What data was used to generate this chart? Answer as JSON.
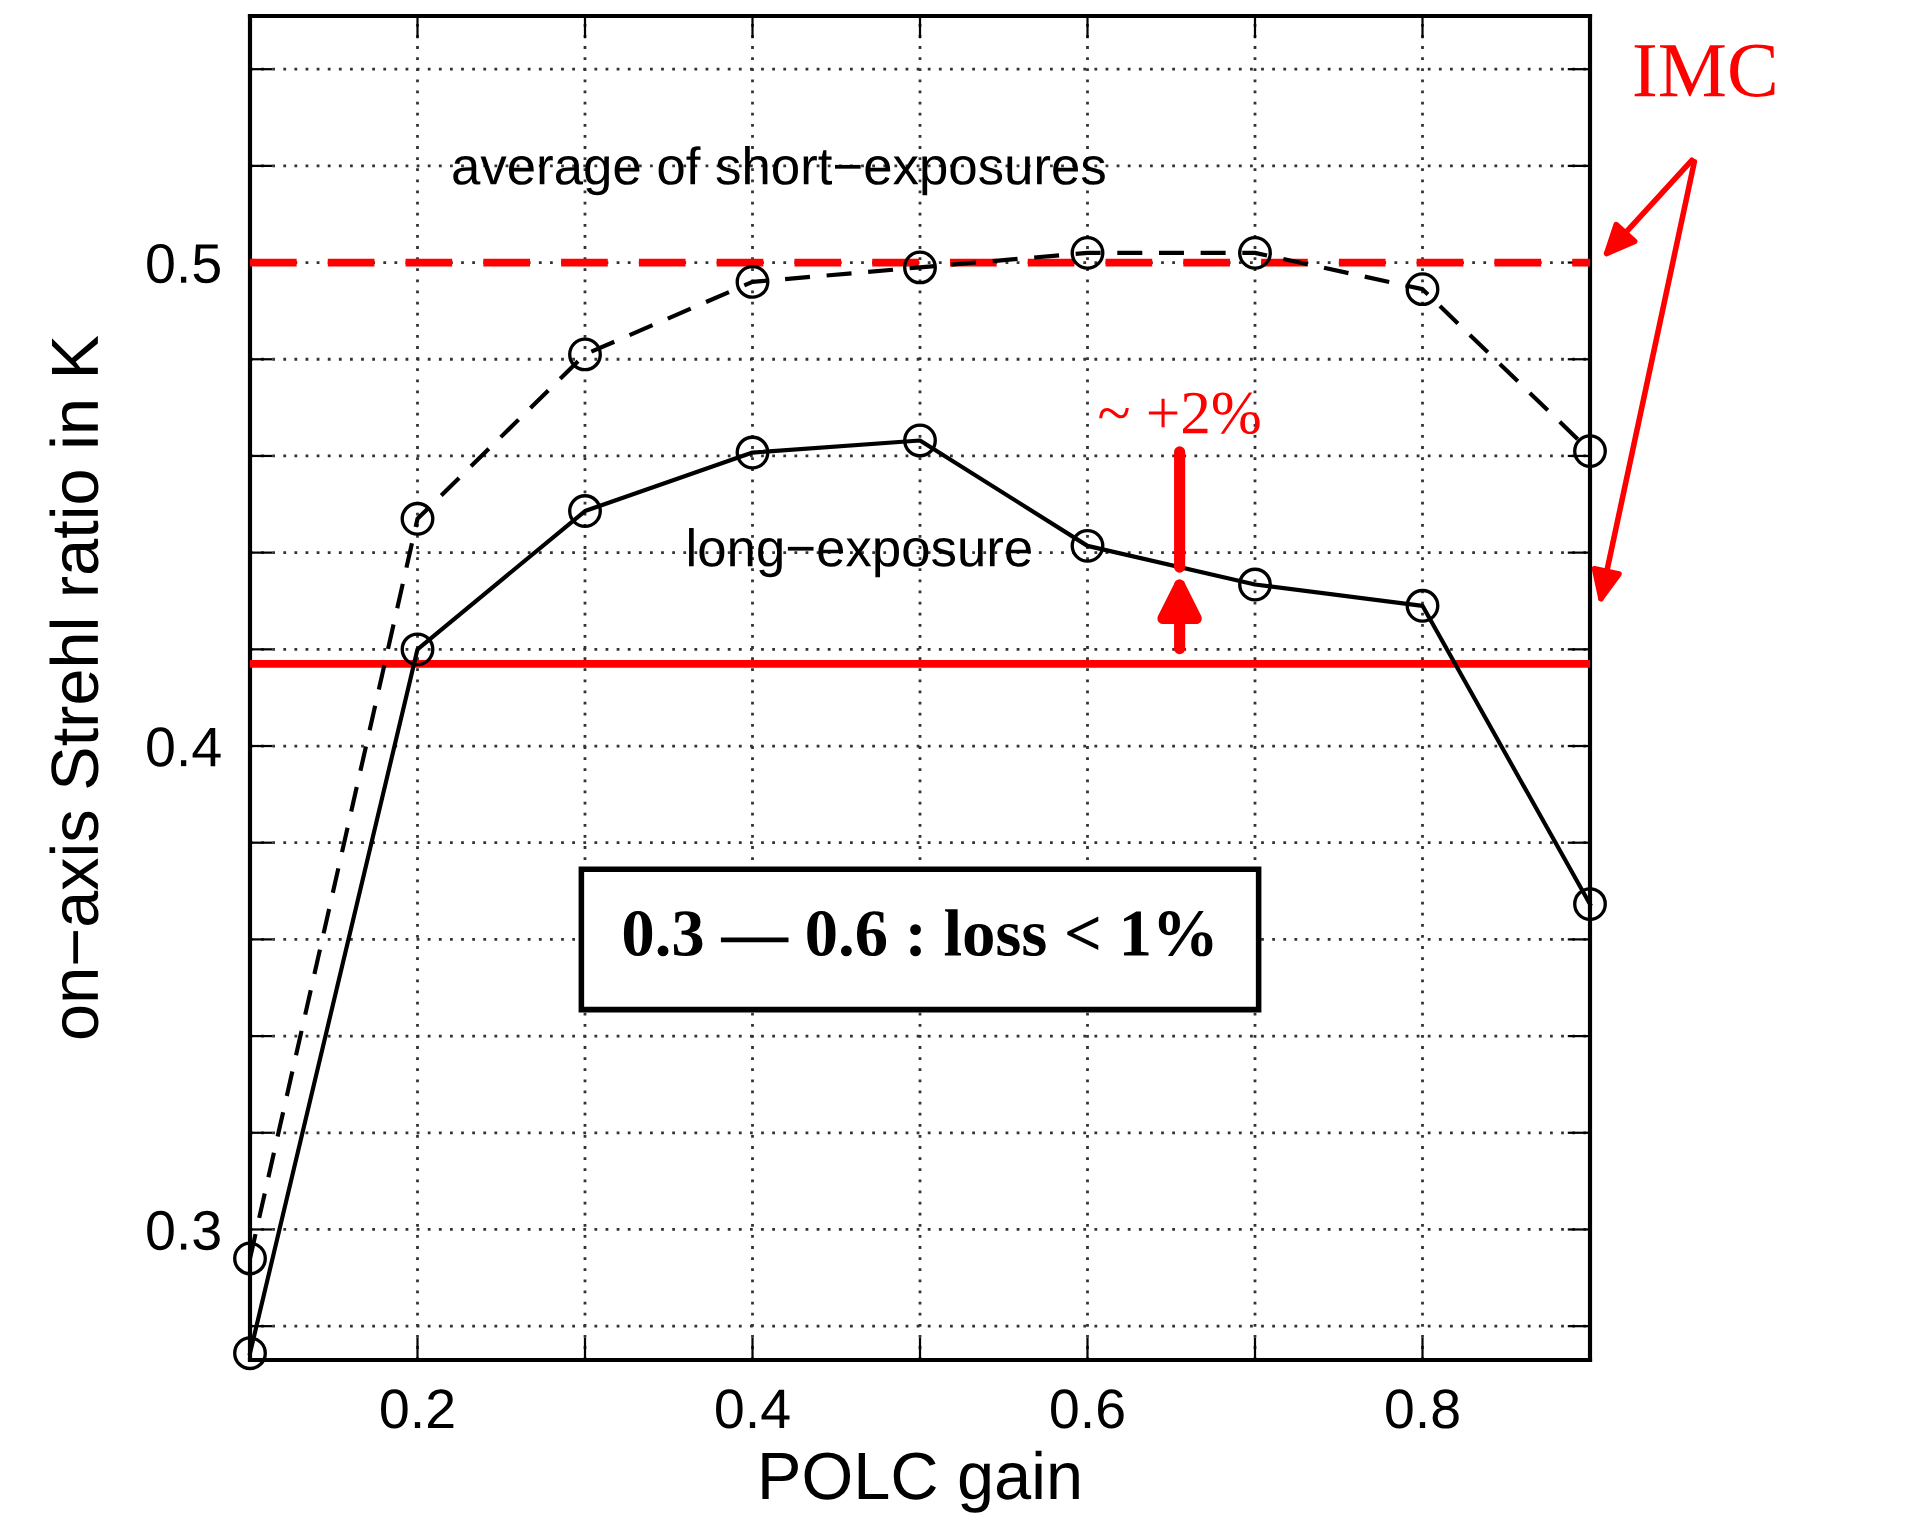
{
  "chart_data": {
    "type": "line",
    "xlabel": "POLC gain",
    "ylabel": "on−axis Strehl ratio in K",
    "x": [
      0.1,
      0.2,
      0.3,
      0.4,
      0.5,
      0.6,
      0.7,
      0.8,
      0.9
    ],
    "series": [
      {
        "name": "average of short−exposures",
        "color": "#000000",
        "line_style": "dashed",
        "values": [
          0.294,
          0.447,
          0.481,
          0.496,
          0.499,
          0.502,
          0.502,
          0.4945,
          0.461
        ]
      },
      {
        "name": "long−exposure",
        "color": "#000000",
        "line_style": "solid",
        "values": [
          0.2744,
          0.42,
          0.4486,
          0.4607,
          0.4632,
          0.4414,
          0.4334,
          0.429,
          0.3673
        ]
      }
    ],
    "marker": "circle",
    "xlim": [
      0.1,
      0.9
    ],
    "xticks": [
      {
        "value": 0.1,
        "label": null
      },
      0.2,
      {
        "value": 0.3,
        "label": null
      },
      0.4,
      {
        "value": 0.5,
        "label": null
      },
      0.6,
      {
        "value": 0.7,
        "label": null
      },
      0.8,
      {
        "value": 0.9,
        "label": null
      }
    ],
    "ylim": [
      0.273,
      0.551
    ],
    "yticks": [
      {
        "value": 0.28,
        "label": null
      },
      0.3,
      {
        "value": 0.32,
        "label": null
      },
      {
        "value": 0.34,
        "label": null
      },
      {
        "value": 0.36,
        "label": null
      },
      {
        "value": 0.38,
        "label": null
      },
      0.4,
      {
        "value": 0.42,
        "label": null
      },
      {
        "value": 0.44,
        "label": null
      },
      {
        "value": 0.46,
        "label": null
      },
      {
        "value": 0.48,
        "label": null
      },
      0.5,
      {
        "value": 0.52,
        "label": null
      },
      {
        "value": 0.54,
        "label": null
      }
    ],
    "grid": true,
    "ref_lines": [
      {
        "axis": "y",
        "value": 0.5,
        "color": "#ff0000",
        "line_style": "dashed"
      },
      {
        "axis": "y",
        "value": 0.417,
        "color": "#ff0000",
        "line_style": "solid"
      }
    ],
    "annotations": [
      {
        "text": "~ +2%",
        "x": 0.655,
        "y": 0.437
      },
      "IMC",
      "0.3 — 0.6 : loss < 1%"
    ]
  }
}
